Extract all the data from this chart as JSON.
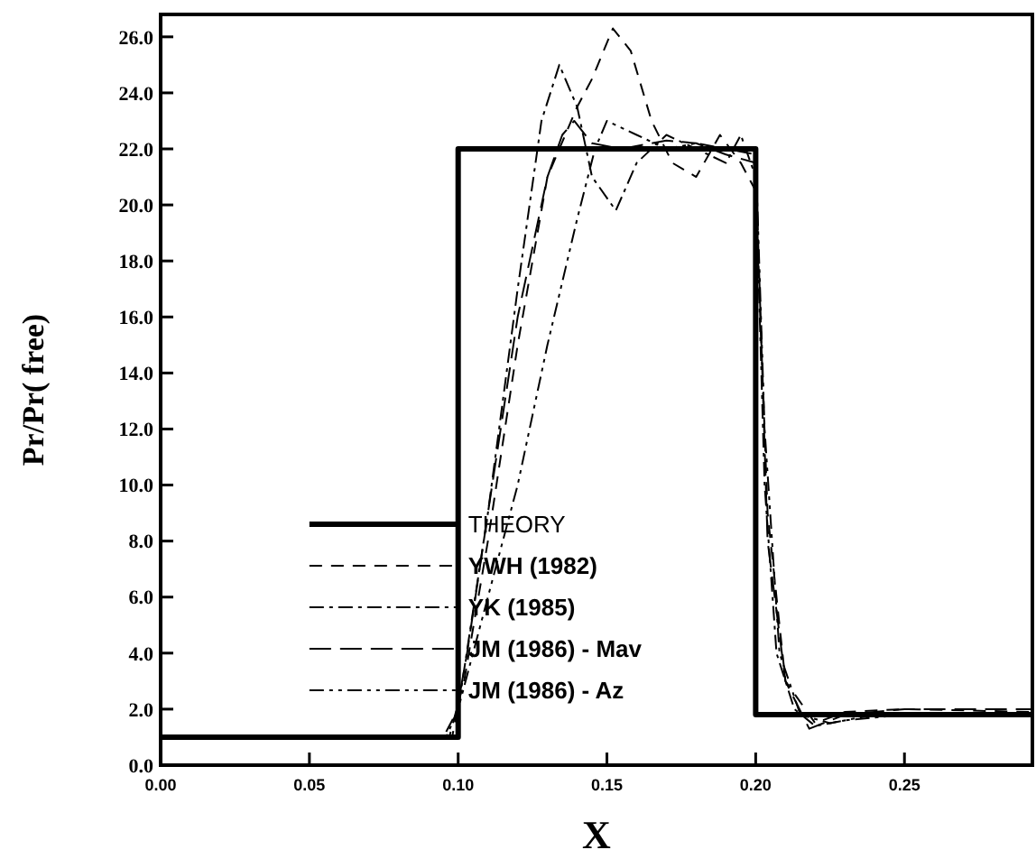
{
  "chart_data": {
    "type": "line",
    "xlabel": "X",
    "ylabel": "Pr/Pr( free)",
    "xlim": [
      0,
      0.293
    ],
    "ylim": [
      0,
      26.8
    ],
    "xticks": [
      {
        "value": 0,
        "label": "0.00"
      },
      0.05,
      {
        "value": 0.1,
        "label": "0.10"
      },
      0.15,
      {
        "value": 0.2,
        "label": "0.20"
      },
      0.25
    ],
    "yticks": [
      {
        "value": 0,
        "label": "0.0"
      },
      {
        "value": 2,
        "label": "2.0"
      },
      {
        "value": 4,
        "label": "4.0"
      },
      {
        "value": 6,
        "label": "6.0"
      },
      {
        "value": 8,
        "label": "8.0"
      },
      {
        "value": 10,
        "label": "10.0"
      },
      {
        "value": 12,
        "label": "12.0"
      },
      {
        "value": 14,
        "label": "14.0"
      },
      {
        "value": 16,
        "label": "16.0"
      },
      {
        "value": 18,
        "label": "18.0"
      },
      {
        "value": 20,
        "label": "20.0"
      },
      {
        "value": 22,
        "label": "22.0"
      },
      {
        "value": 24,
        "label": "24.0"
      },
      {
        "value": 26,
        "label": "26.0"
      }
    ],
    "grid": false,
    "legend": "bottom left",
    "marker": "none",
    "series": [
      {
        "name": "THEORY",
        "color": "#000000",
        "line_style": "solid",
        "x": [
          0,
          0.1,
          0.1,
          0.2,
          0.2,
          0.293
        ],
        "values": [
          1,
          1,
          22,
          22,
          1.8,
          1.8
        ]
      },
      {
        "name": "YWH (1982)",
        "color": "#000000",
        "line_style": "dashed",
        "x": [
          0,
          0.097,
          0.102,
          0.11,
          0.12,
          0.13,
          0.14,
          0.145,
          0.152,
          0.158,
          0.165,
          0.172,
          0.18,
          0.188,
          0.195,
          0.2,
          0.204,
          0.21,
          0.22,
          0.23,
          0.25,
          0.293
        ],
        "values": [
          1,
          1,
          3,
          8,
          15,
          21,
          23.5,
          24.5,
          26.3,
          25.5,
          23,
          21.5,
          21,
          22.5,
          21.5,
          20.5,
          9,
          3,
          1.5,
          1.9,
          2.0,
          1.9
        ]
      },
      {
        "name": "YK (1985)",
        "color": "#000000",
        "line_style": "dashdot",
        "x": [
          0,
          0.095,
          0.1,
          0.11,
          0.12,
          0.128,
          0.134,
          0.14,
          0.145,
          0.153,
          0.16,
          0.17,
          0.18,
          0.19,
          0.195,
          0.2,
          0.203,
          0.207,
          0.213,
          0.22,
          0.23,
          0.25,
          0.293
        ],
        "values": [
          1,
          1,
          2,
          9,
          17,
          23,
          25,
          23.5,
          21,
          19.8,
          21.5,
          22.5,
          22,
          21.5,
          22.5,
          21,
          10,
          4,
          2,
          1.4,
          1.6,
          1.8,
          1.8
        ]
      },
      {
        "name": "JM (1986) - Mav",
        "color": "#000000",
        "line_style": "longdash",
        "x": [
          0,
          0.098,
          0.103,
          0.11,
          0.12,
          0.13,
          0.135,
          0.139,
          0.145,
          0.155,
          0.17,
          0.18,
          0.19,
          0.2,
          0.204,
          0.21,
          0.218,
          0.23,
          0.25,
          0.293
        ],
        "values": [
          1,
          1,
          4,
          9,
          16,
          21,
          22.5,
          23,
          22.2,
          22,
          22.3,
          22.2,
          21.8,
          21.5,
          8,
          3,
          1.3,
          1.8,
          2.0,
          2.0
        ]
      },
      {
        "name": "JM (1986) - Az",
        "color": "#000000",
        "line_style": "dashdotdot",
        "x": [
          0,
          0.096,
          0.1,
          0.11,
          0.12,
          0.13,
          0.14,
          0.146,
          0.15,
          0.16,
          0.17,
          0.18,
          0.19,
          0.2,
          0.203,
          0.208,
          0.215,
          0.225,
          0.24,
          0.293
        ],
        "values": [
          1,
          1,
          2,
          6,
          10,
          15,
          19.5,
          22,
          23,
          22.5,
          22,
          22.2,
          22,
          21.8,
          12,
          4,
          1.8,
          1.5,
          1.8,
          1.8
        ]
      }
    ]
  }
}
